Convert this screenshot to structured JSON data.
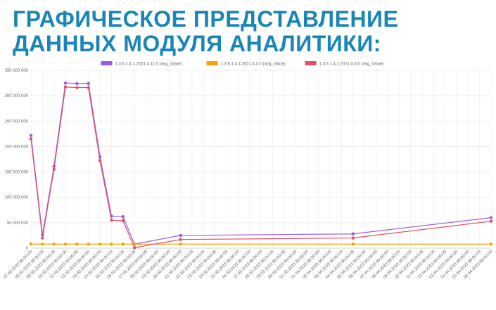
{
  "slide": {
    "title_line1": "ГРАФИЧЕСКОЕ ПРЕДСТАВЛЕНИЕ",
    "title_line2": "ДАННЫХ МОДУЛЯ АНАЛИТИКИ:"
  },
  "chart_data": {
    "type": "line",
    "title": "",
    "xlabel": "",
    "ylabel": "",
    "ylim": [
      0,
      350000000
    ],
    "y_ticks": [
      0,
      50000000,
      100000000,
      150000000,
      200000000,
      250000000,
      300000000,
      350000000
    ],
    "y_tick_labels": [
      "0",
      "50 000 000",
      "100 000 000",
      "150 000 000",
      "200 000 000",
      "250 000 000",
      "300 000 000",
      "350 000 000"
    ],
    "grid": true,
    "legend_position": "top",
    "categories": [
      "07.03.2023 00:00:00",
      "08.03.2023 00:00:00",
      "09.03.2023 00:00:00",
      "10.03.2023 00:00:00",
      "11.03.2023 00:00:00",
      "12.03.2023 00:00:00",
      "13.03.2023 00:00:00",
      "14.03.2023 00:00:00",
      "15.03.2023 00:00:00",
      "16.03.2023 00:00:00",
      "17.03.2023 00:00:00",
      "18.03.2023 00:00:00",
      "19.03.2023 00:00:00",
      "20.03.2023 00:00:00",
      "21.03.2023 00:00:00",
      "22.03.2023 00:00:00",
      "23.03.2023 00:00:00",
      "24.03.2023 00:00:00",
      "25.03.2023 00:00:00",
      "26.03.2023 00:00:00",
      "27.03.2023 00:00:00",
      "28.03.2023 00:00:00",
      "29.03.2023 00:00:00",
      "30.03.2023 00:00:00",
      "31.03.2023 00:00:00",
      "01.04.2023 00:00:00",
      "02.04.2023 00:00:00",
      "03.04.2023 00:00:00",
      "04.04.2023 00:00:00",
      "05.04.2023 00:00:00",
      "06.04.2023 00:00:00",
      "07.04.2023 00:00:00",
      "08.04.2023 00:00:00",
      "09.04.2023 00:00:00",
      "10.04.2023 00:00:00",
      "11.04.2023 00:00:00",
      "12.04.2023 00:00:00",
      "13.04.2023 00:00:00",
      "14.04.2023 00:00:00",
      "15.04.2023 00:00:00",
      "16.04.2023 00:00:00"
    ],
    "series": [
      {
        "name": "1.3.6.1.4.1.2021.4.11.0 (avg_Value)",
        "color": "#9b59e6",
        "points": [
          {
            "i": 0,
            "y": 222000000
          },
          {
            "i": 1,
            "y": 26000000
          },
          {
            "i": 2,
            "y": 161000000
          },
          {
            "i": 3,
            "y": 325000000
          },
          {
            "i": 4,
            "y": 324000000
          },
          {
            "i": 5,
            "y": 324000000
          },
          {
            "i": 6,
            "y": 180000000
          },
          {
            "i": 7,
            "y": 63000000
          },
          {
            "i": 8,
            "y": 62000000
          },
          {
            "i": 9,
            "y": 8000000
          },
          {
            "i": 13,
            "y": 25000000
          },
          {
            "i": 28,
            "y": 28000000
          },
          {
            "i": 40,
            "y": 60000000
          }
        ]
      },
      {
        "name": "1.3.6.1.4.1.2021.4.3.0 (avg_Value)",
        "color": "#f0a500",
        "points": [
          {
            "i": 0,
            "y": 8000000
          },
          {
            "i": 1,
            "y": 8000000
          },
          {
            "i": 2,
            "y": 8000000
          },
          {
            "i": 3,
            "y": 8000000
          },
          {
            "i": 4,
            "y": 8000000
          },
          {
            "i": 5,
            "y": 8000000
          },
          {
            "i": 6,
            "y": 8000000
          },
          {
            "i": 7,
            "y": 8000000
          },
          {
            "i": 8,
            "y": 8000000
          },
          {
            "i": 9,
            "y": 8000000
          },
          {
            "i": 13,
            "y": 8000000
          },
          {
            "i": 28,
            "y": 8000000
          },
          {
            "i": 40,
            "y": 8000000
          }
        ]
      },
      {
        "name": "1.3.6.1.4.1.2021.4.6.0 (avg_Value)",
        "color": "#e0506a",
        "points": [
          {
            "i": 0,
            "y": 215000000
          },
          {
            "i": 1,
            "y": 20000000
          },
          {
            "i": 2,
            "y": 155000000
          },
          {
            "i": 3,
            "y": 317000000
          },
          {
            "i": 4,
            "y": 316000000
          },
          {
            "i": 5,
            "y": 316000000
          },
          {
            "i": 6,
            "y": 172000000
          },
          {
            "i": 7,
            "y": 55000000
          },
          {
            "i": 8,
            "y": 54000000
          },
          {
            "i": 9,
            "y": 1000000
          },
          {
            "i": 13,
            "y": 17000000
          },
          {
            "i": 28,
            "y": 20000000
          },
          {
            "i": 40,
            "y": 53000000
          }
        ]
      }
    ]
  }
}
